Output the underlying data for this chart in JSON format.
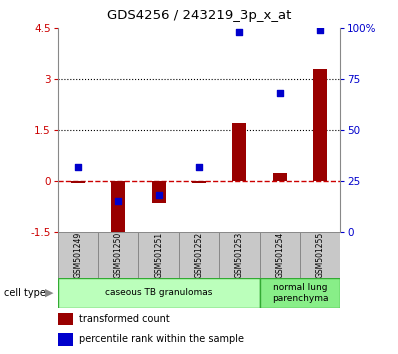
{
  "title": "GDS4256 / 243219_3p_x_at",
  "samples": [
    "GSM501249",
    "GSM501250",
    "GSM501251",
    "GSM501252",
    "GSM501253",
    "GSM501254",
    "GSM501255"
  ],
  "transformed_count": [
    -0.05,
    -1.65,
    -0.65,
    -0.05,
    1.7,
    0.25,
    3.3
  ],
  "percentile_rank": [
    32,
    15,
    18,
    32,
    98,
    68,
    99
  ],
  "ylim_left": [
    -1.5,
    4.5
  ],
  "ylim_right": [
    0,
    100
  ],
  "yticks_left": [
    -1.5,
    0,
    1.5,
    3,
    4.5
  ],
  "ytick_labels_left": [
    "-1.5",
    "0",
    "1.5",
    "3",
    "4.5"
  ],
  "yticks_right": [
    0,
    25,
    50,
    75,
    100
  ],
  "ytick_labels_right": [
    "0",
    "25",
    "50",
    "75",
    "100%"
  ],
  "hlines_dotted": [
    1.5,
    3.0
  ],
  "bar_color": "#990000",
  "dot_color": "#0000cc",
  "zero_line_color": "#cc0000",
  "groups": [
    {
      "label": "caseous TB granulomas",
      "samples_idx": [
        0,
        4
      ],
      "color": "#bbffbb"
    },
    {
      "label": "normal lung\nparenchyma",
      "samples_idx": [
        5,
        6
      ],
      "color": "#88ee88"
    }
  ],
  "legend_bar_label": "transformed count",
  "legend_dot_label": "percentile rank within the sample",
  "cell_type_label": "cell type",
  "left_tick_color": "#cc0000",
  "right_tick_color": "#0000cc",
  "background_color": "#ffffff",
  "sample_box_color": "#c8c8c8",
  "sample_box_edge": "#888888",
  "bar_width": 0.35
}
